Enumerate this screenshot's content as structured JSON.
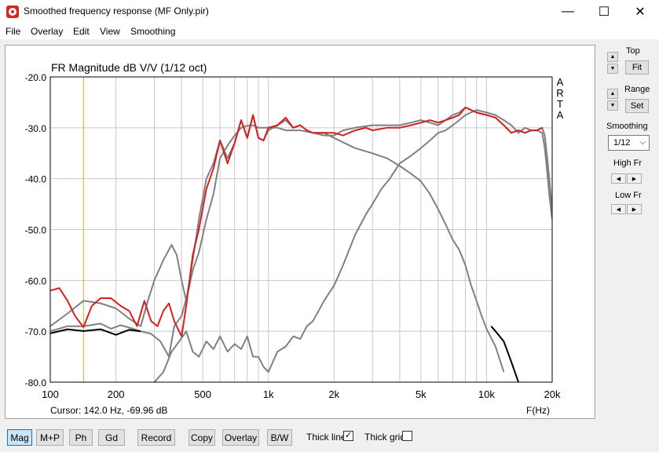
{
  "window": {
    "title": "Smoothed frequency response (MF Only.pir)",
    "minimize_glyph": "—",
    "maximize_glyph": "☐",
    "close_glyph": "✕"
  },
  "menu": {
    "items": [
      "File",
      "Overlay",
      "Edit",
      "View",
      "Smoothing"
    ]
  },
  "plot": {
    "cursor_readout": "Cursor: 142.0 Hz, -69.96 dB",
    "x_unit_label": "F(Hz)",
    "brand_label": "ARTA"
  },
  "right_panel": {
    "top_label": "Top",
    "fit_label": "Fit",
    "range_label": "Range",
    "set_label": "Set",
    "smoothing_label": "Smoothing",
    "smoothing_value": "1/12",
    "high_fr_label": "High Fr",
    "low_fr_label": "Low Fr"
  },
  "bottom_bar": {
    "buttons": [
      "Mag",
      "M+P",
      "Ph",
      "Gd",
      "Record",
      "Copy",
      "Overlay",
      "B/W"
    ],
    "active_button": "Mag",
    "thick_line_label": "Thick line",
    "thick_line_checked": true,
    "thick_grid_label": "Thick grid",
    "thick_grid_checked": false
  },
  "chart_data": {
    "type": "line",
    "title": "FR Magnitude dB V/V (1/12 oct)",
    "xlabel": "F(Hz)",
    "ylabel": "",
    "x_scale": "log",
    "xlim": [
      100,
      20000
    ],
    "ylim": [
      -80,
      -20
    ],
    "x_ticks": [
      100,
      200,
      500,
      1000,
      2000,
      5000,
      10000,
      20000
    ],
    "x_tick_labels": [
      "100",
      "200",
      "500",
      "1k",
      "2k",
      "5k",
      "10k",
      "20k"
    ],
    "y_ticks": [
      -20,
      -30,
      -40,
      -50,
      -60,
      -70,
      -80
    ],
    "y_tick_labels": [
      "-20.0",
      "-30.0",
      "-40.0",
      "-50.0",
      "-60.0",
      "-70.0",
      "-80.0"
    ],
    "grid": true,
    "cursor_x": 142,
    "cursor_color": "#d4a92a",
    "series": [
      {
        "color": "#808080",
        "x": [
          100,
          120,
          142,
          170,
          190,
          210,
          240,
          260,
          290,
          320,
          350,
          370,
          400,
          430,
          450,
          480,
          520,
          560,
          600,
          650,
          700,
          750,
          800,
          850,
          900,
          950,
          1000,
          1100,
          1200,
          1400,
          1600,
          1800,
          2000,
          2500,
          3000,
          3500,
          4000,
          4500,
          5000,
          5500,
          6000,
          6500,
          7000,
          7500,
          8000,
          8500,
          9000,
          9500,
          10000,
          11000,
          12000
        ],
        "y": [
          -70,
          -69,
          -69,
          -68.5,
          -69.5,
          -68.8,
          -69.5,
          -70,
          -70.5,
          -72,
          -75,
          -69,
          -67,
          -62,
          -58,
          -54.5,
          -48,
          -43,
          -36,
          -33.5,
          -31.5,
          -30,
          -29.6,
          -29.5,
          -30,
          -30,
          -30,
          -30,
          -30.5,
          -30.5,
          -31,
          -31,
          -32,
          -34,
          -35,
          -36,
          -37.5,
          -39,
          -40.5,
          -43,
          -46,
          -49,
          -52,
          -54,
          -57,
          -61,
          -64,
          -67,
          -69.5,
          -73,
          -78
        ]
      },
      {
        "color": "#808080",
        "x": [
          100,
          120,
          142,
          170,
          200,
          230,
          260,
          280,
          300,
          330,
          360,
          380,
          400,
          420,
          450,
          480,
          520,
          560,
          600,
          650,
          700,
          750,
          800,
          850,
          900,
          950,
          1000,
          1100,
          1200,
          1300,
          1400,
          1500,
          1600,
          1800,
          2000,
          2200,
          2500,
          3000,
          3500,
          4000,
          4500,
          5000,
          5500,
          6000,
          6500,
          7000,
          7500,
          8000,
          9000,
          10000,
          11000,
          12000,
          13000,
          14000,
          15000,
          16000,
          17000,
          18000,
          18500,
          19000,
          19500,
          20000
        ],
        "y": [
          -69,
          -66.5,
          -64,
          -64.5,
          -65.5,
          -67.5,
          -69,
          -64,
          -60,
          -56,
          -53,
          -55,
          -60,
          -64,
          -56,
          -48,
          -40,
          -37,
          -32.5,
          -36,
          -33,
          -28.5,
          -32,
          -27.5,
          -32,
          -32.5,
          -30.5,
          -29.5,
          -28.5,
          -30,
          -29.5,
          -30.5,
          -31,
          -31.5,
          -31.5,
          -30.5,
          -30,
          -29.5,
          -29.5,
          -29.5,
          -29,
          -28.5,
          -29,
          -29.5,
          -28.5,
          -27.5,
          -27,
          -26,
          -27,
          -27.5,
          -28,
          -29.5,
          -31,
          -30.5,
          -31,
          -30.5,
          -30.5,
          -30,
          -31.5,
          -36,
          -41,
          -46
        ]
      },
      {
        "color": "#808080",
        "x": [
          300,
          330,
          360,
          390,
          420,
          450,
          480,
          520,
          560,
          600,
          650,
          700,
          750,
          800,
          850,
          900,
          950,
          1000,
          1100,
          1200,
          1300,
          1400,
          1500,
          1600,
          1800,
          2000,
          2200,
          2500,
          2800,
          3000,
          3300,
          3600,
          4000,
          4500,
          5000,
          5500,
          6000,
          6500,
          7000,
          7500,
          8000,
          9000,
          10000,
          11000,
          12000,
          13000,
          14000,
          15000,
          16000,
          17000,
          18000,
          18500,
          19000,
          19500,
          20000
        ],
        "y": [
          -80,
          -78,
          -74,
          -72,
          -70,
          -74,
          -75,
          -72,
          -73.5,
          -71,
          -74,
          -72.5,
          -73.5,
          -71,
          -75,
          -75,
          -77,
          -78,
          -74,
          -73,
          -71,
          -71.5,
          -69,
          -68,
          -64,
          -61,
          -57,
          -51,
          -47,
          -45,
          -42,
          -40,
          -37,
          -35.5,
          -34,
          -32.5,
          -31,
          -30.5,
          -29.5,
          -28.5,
          -27.5,
          -26.5,
          -27,
          -27.5,
          -28.5,
          -29.5,
          -31,
          -30,
          -30.5,
          -30.5,
          -31,
          -34,
          -39,
          -44,
          -48
        ]
      },
      {
        "color": "#000000",
        "x": [
          100,
          120,
          142,
          170,
          200,
          230,
          260
        ],
        "y": [
          -70.4,
          -69.6,
          -69.96,
          -69.6,
          -70.7,
          -69.7,
          -70
        ]
      },
      {
        "color": "#000000",
        "x": [
          10500,
          11000,
          12000,
          13000,
          14000
        ],
        "y": [
          -69,
          -70,
          -72,
          -76,
          -80
        ]
      },
      {
        "color": "#d42020",
        "x": [
          100,
          110,
          120,
          130,
          142,
          155,
          170,
          190,
          210,
          230,
          250,
          270,
          290,
          310,
          330,
          350,
          370,
          400,
          420,
          450,
          480,
          520,
          560,
          600,
          650,
          700,
          750,
          800,
          850,
          900,
          950,
          1000,
          1100,
          1200,
          1300,
          1400,
          1500,
          1600,
          1800,
          2000,
          2200,
          2500,
          2800,
          3000,
          3500,
          4000,
          4500,
          5000,
          5500,
          6000,
          6500,
          7000,
          7500,
          8000,
          9000,
          10000,
          11000,
          12000,
          13000,
          14000,
          15000,
          16000,
          17000,
          18000
        ],
        "y": [
          -62,
          -61.5,
          -64,
          -67,
          -69.2,
          -65,
          -63.5,
          -63.5,
          -65,
          -66,
          -69,
          -64,
          -68,
          -69,
          -66,
          -64.5,
          -68,
          -71,
          -65,
          -55,
          -50,
          -42,
          -38,
          -32.5,
          -37,
          -33,
          -28.5,
          -32,
          -27.5,
          -32,
          -32.5,
          -30,
          -29.5,
          -28,
          -30,
          -29.5,
          -30.5,
          -31,
          -31,
          -31,
          -31.5,
          -30.5,
          -30,
          -30.5,
          -30,
          -30,
          -29.5,
          -29,
          -28.5,
          -29,
          -28.5,
          -28,
          -27.5,
          -26,
          -27,
          -27.5,
          -28,
          -29.5,
          -31,
          -30.5,
          -31,
          -30.5,
          -30.5,
          -30
        ]
      }
    ]
  }
}
